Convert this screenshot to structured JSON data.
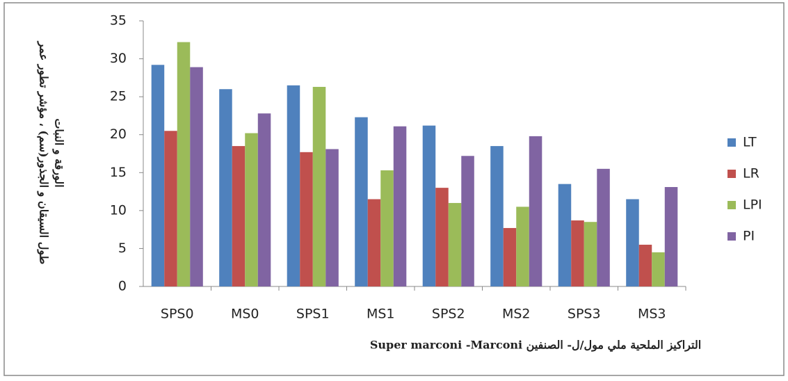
{
  "chart_data": {
    "type": "bar",
    "ylabel": [
      "طول السيقان و الجذور(سم) ، مؤشر تطور عمر",
      "الورقة و النبات"
    ],
    "xlabel": "التراكيز الملحية ملي مول/ل- الصنفين Super marconi -Marconi",
    "categories": [
      "SPS0",
      "MS0",
      "SPS1",
      "MS1",
      "SPS2",
      "MS2",
      "SPS3",
      "MS3"
    ],
    "series": [
      {
        "name": "LT",
        "color": "#4f81bd",
        "values": [
          29.2,
          26,
          26.5,
          22.3,
          21.2,
          18.5,
          13.5,
          11.5
        ]
      },
      {
        "name": "LR",
        "color": "#c0504d",
        "values": [
          20.5,
          18.5,
          17.7,
          11.5,
          13,
          7.7,
          8.7,
          5.5
        ]
      },
      {
        "name": "LPI",
        "color": "#9bbb59",
        "values": [
          32.2,
          20.2,
          26.3,
          15.3,
          11,
          10.5,
          8.5,
          4.5
        ]
      },
      {
        "name": "PI",
        "color": "#8064a2",
        "values": [
          28.9,
          22.8,
          18.1,
          21.1,
          17.2,
          19.8,
          15.5,
          13.1
        ]
      }
    ],
    "ylim": [
      0,
      35
    ],
    "yticks": [
      0,
      5,
      10,
      15,
      20,
      25,
      30,
      35
    ],
    "grid": false,
    "legend": "right"
  }
}
